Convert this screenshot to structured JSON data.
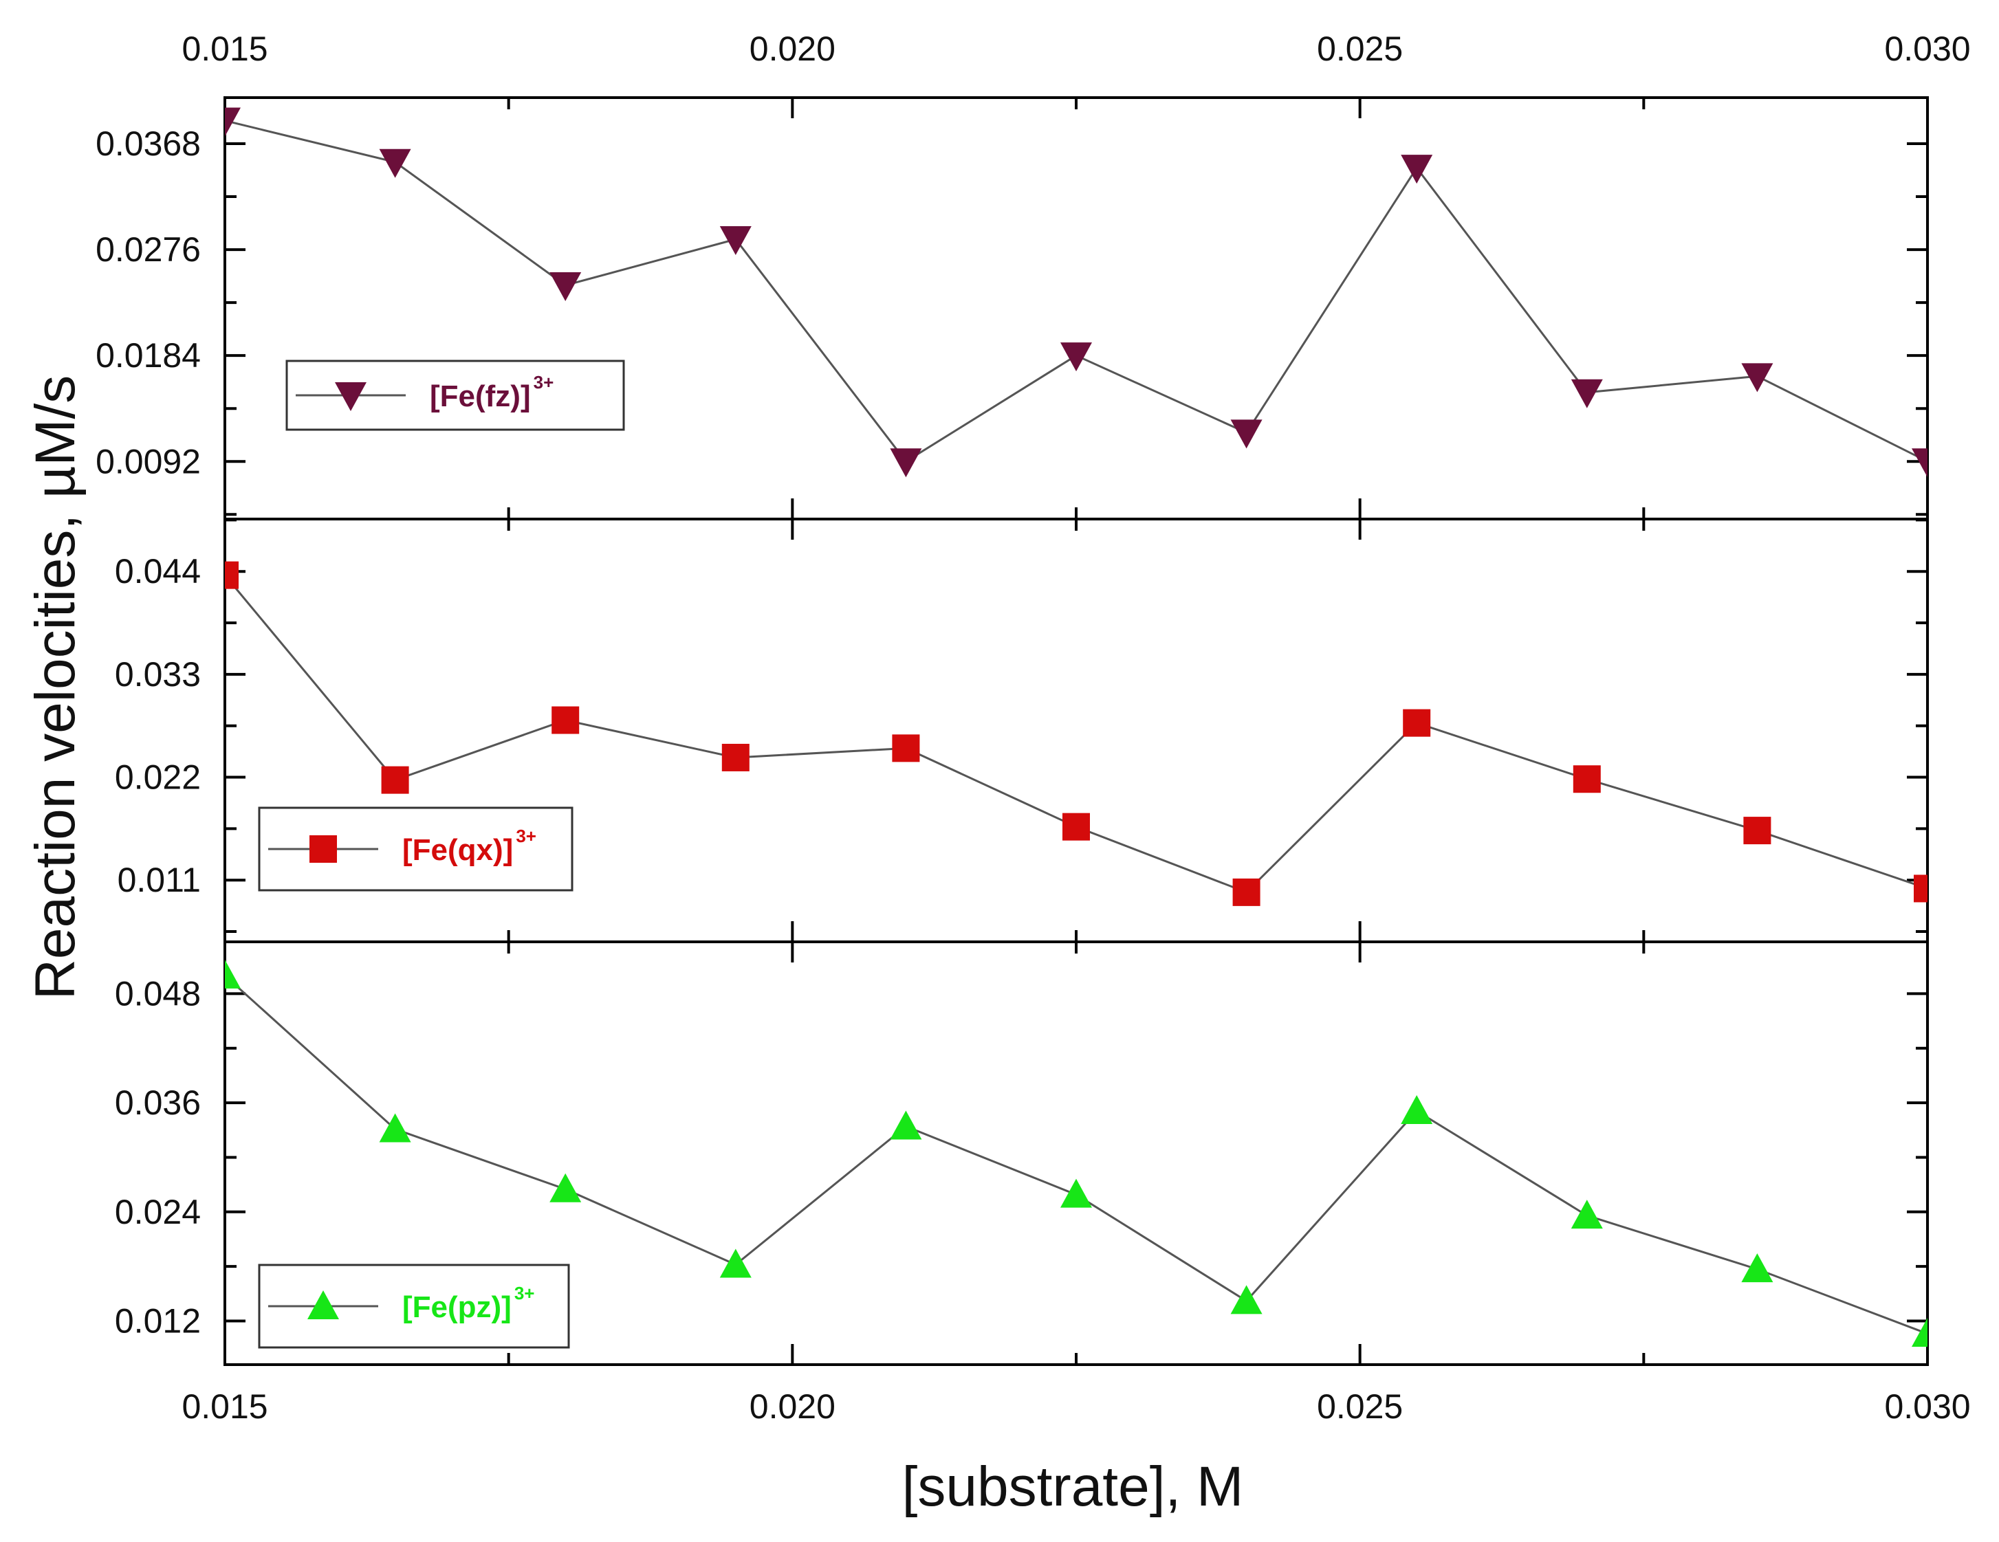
{
  "chart_data": {
    "type": "line",
    "layout": "stacked-panels",
    "xlabel": "[substrate], M",
    "ylabel": "Reaction velocities, µM/s",
    "x_ticks": [
      "0.015",
      "0.020",
      "0.025",
      "0.030"
    ],
    "x_tick_values": [
      0.015,
      0.02,
      0.025,
      0.03
    ],
    "xlim": [
      0.015,
      0.03
    ],
    "x": [
      0.015,
      0.0165,
      0.018,
      0.0195,
      0.021,
      0.0225,
      0.024,
      0.0255,
      0.027,
      0.0285,
      0.03
    ],
    "panels": [
      {
        "name": "[Fe(fz)]3+",
        "legend_base": "[Fe(fz)]",
        "legend_sup": "3+",
        "marker": "triangle-down",
        "color": "#6b0f3a",
        "ylim": [
          0.0042,
          0.0408
        ],
        "y_ticks": [
          "0.0092",
          "0.0184",
          "0.0276",
          "0.0368"
        ],
        "y_tick_values": [
          0.0092,
          0.0184,
          0.0276,
          0.0368
        ],
        "values": [
          0.0388,
          0.0352,
          0.0245,
          0.0285,
          0.0092,
          0.0184,
          0.0117,
          0.0347,
          0.0152,
          0.0166,
          0.0092
        ]
      },
      {
        "name": "[Fe(qx)]3+",
        "legend_base": "[Fe(qx)]",
        "legend_sup": "3+",
        "marker": "square",
        "color": "#d40b0b",
        "ylim": [
          0.0044,
          0.0496
        ],
        "y_ticks": [
          "0.011",
          "0.022",
          "0.033",
          "0.044"
        ],
        "y_tick_values": [
          0.011,
          0.022,
          0.033,
          0.044
        ],
        "values": [
          0.0436,
          0.0217,
          0.0281,
          0.0241,
          0.0251,
          0.0167,
          0.0097,
          0.0278,
          0.0218,
          0.0163,
          0.0101
        ]
      },
      {
        "name": "[Fe(pz)]3+",
        "legend_base": "[Fe(pz)]",
        "legend_sup": "3+",
        "marker": "triangle-up",
        "color": "#17e617",
        "ylim": [
          0.0072,
          0.0537
        ],
        "y_ticks": [
          "0.012",
          "0.024",
          "0.036",
          "0.048"
        ],
        "y_tick_values": [
          0.012,
          0.024,
          0.036,
          0.048
        ],
        "values": [
          0.05,
          0.0331,
          0.0265,
          0.0182,
          0.0334,
          0.0259,
          0.0142,
          0.0351,
          0.0236,
          0.0177,
          0.0106
        ]
      }
    ]
  }
}
